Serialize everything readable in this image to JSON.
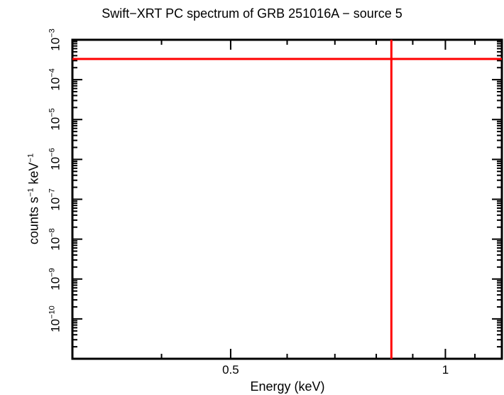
{
  "chart_data": {
    "type": "line",
    "title": "Swift−XRT PC spectrum of GRB 251016A − source 5",
    "xlabel": "Energy (keV)",
    "ylabel": "counts s⁻¹ keV⁻¹",
    "xscale": "log",
    "yscale": "log",
    "xlim": [
      0.3,
      1.2
    ],
    "ylim": [
      1e-11,
      0.001
    ],
    "x_ticks": [
      {
        "value": 0.5,
        "label": "0.5"
      },
      {
        "value": 1,
        "label": "1"
      }
    ],
    "y_ticks": [
      {
        "value": 0.001,
        "base": "10",
        "exp": "−3"
      },
      {
        "value": 0.0001,
        "base": "10",
        "exp": "−4"
      },
      {
        "value": 1e-05,
        "base": "10",
        "exp": "−5"
      },
      {
        "value": 1e-06,
        "base": "10",
        "exp": "−6"
      },
      {
        "value": 1e-07,
        "base": "10",
        "exp": "−7"
      },
      {
        "value": 1e-08,
        "base": "10",
        "exp": "−8"
      },
      {
        "value": 1e-09,
        "base": "10",
        "exp": "−9"
      },
      {
        "value": 1e-10,
        "base": "10",
        "exp": "−10"
      }
    ],
    "series": [
      {
        "name": "data point (error cross)",
        "color": "#ff0000",
        "x": 0.84,
        "y": 0.00033,
        "x_err": [
          0.3,
          1.2
        ],
        "y_err": [
          1e-11,
          0.001
        ]
      }
    ],
    "grid": false,
    "legend": null
  }
}
